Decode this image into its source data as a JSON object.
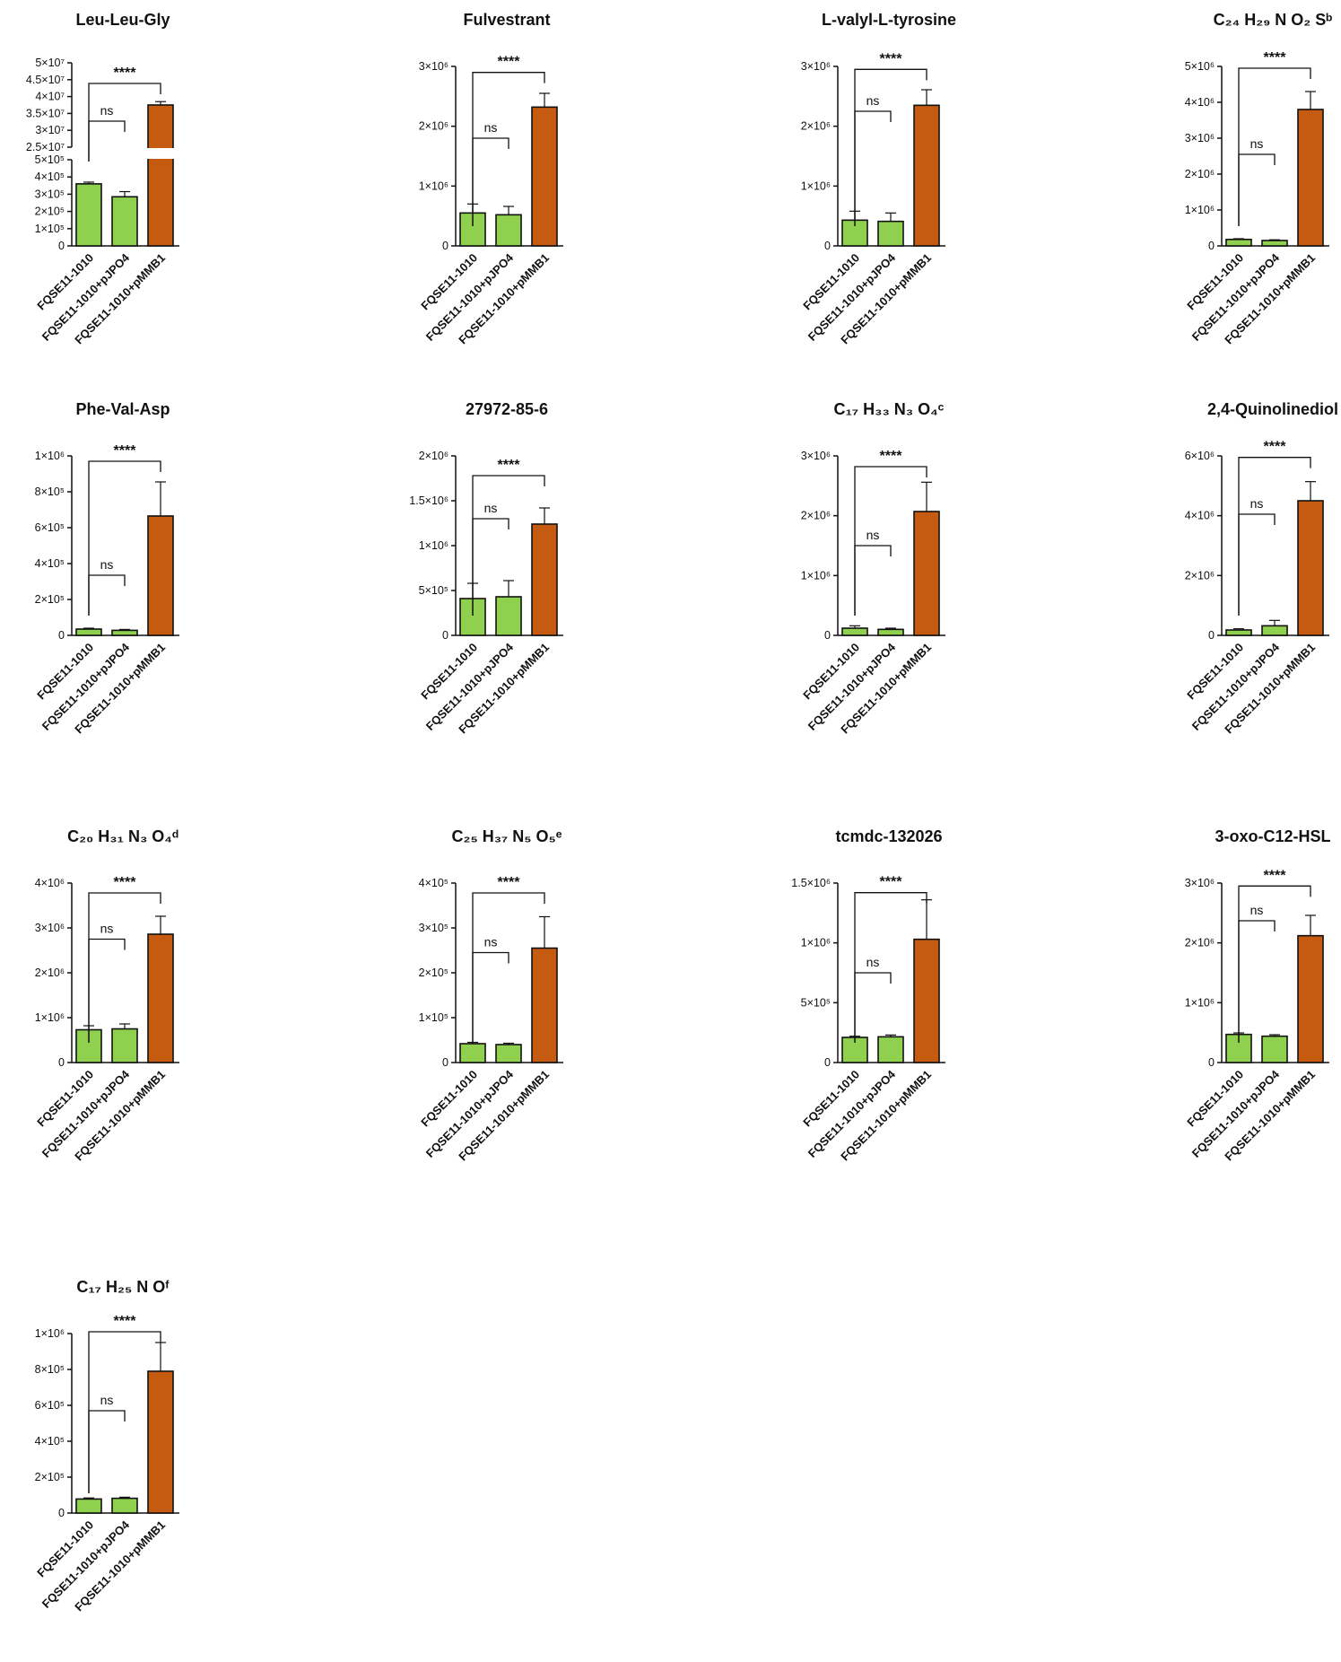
{
  "chart_data": [
    {
      "type": "bar",
      "title": "Leu-Leu-Gly",
      "categories": [
        "FQSE11-1010",
        "FQSE11-1010+pJPO4",
        "FQSE11-1010+pMMB1"
      ],
      "values": [
        360000,
        285000,
        37500000
      ],
      "errors": [
        10000,
        30000,
        1000000
      ],
      "colors": [
        "#8fd14f",
        "#8fd14f",
        "#c55a11"
      ],
      "axis_break": true,
      "lower_ylim": [
        0,
        500000
      ],
      "upper_ylim": [
        25000000,
        50000000
      ],
      "lower_ticks": [
        "0",
        "1×10⁵",
        "2×10⁵",
        "3×10⁵",
        "4×10⁵",
        "5×10⁵"
      ],
      "upper_ticks": [
        "2.5×10⁷",
        "3×10⁷",
        "3.5×10⁷",
        "4×10⁷",
        "4.5×10⁷",
        "5×10⁷"
      ],
      "significance": [
        {
          "groups": [
            0,
            1
          ],
          "label": "ns"
        },
        {
          "groups": [
            0,
            2
          ],
          "label": "****"
        }
      ]
    },
    {
      "type": "bar",
      "title": "Fulvestrant",
      "categories": [
        "FQSE11-1010",
        "FQSE11-1010+pJPO4",
        "FQSE11-1010+pMMB1"
      ],
      "values": [
        550000,
        520000,
        2320000
      ],
      "errors": [
        150000,
        140000,
        230000
      ],
      "colors": [
        "#8fd14f",
        "#8fd14f",
        "#c55a11"
      ],
      "ylim": [
        0,
        3000000
      ],
      "tick_values": [
        0,
        1000000,
        2000000,
        3000000
      ],
      "tick_labels": [
        "0",
        "1×10⁶",
        "2×10⁶",
        "3×10⁶"
      ],
      "significance": [
        {
          "groups": [
            0,
            1
          ],
          "label": "ns",
          "y": 1800000
        },
        {
          "groups": [
            0,
            2
          ],
          "label": "****",
          "y": 2900000
        }
      ]
    },
    {
      "type": "bar",
      "title": "L-valyl-L-tyrosine",
      "categories": [
        "FQSE11-1010",
        "FQSE11-1010+pJPO4",
        "FQSE11-1010+pMMB1"
      ],
      "values": [
        430000,
        410000,
        2350000
      ],
      "errors": [
        150000,
        140000,
        260000
      ],
      "colors": [
        "#8fd14f",
        "#8fd14f",
        "#c55a11"
      ],
      "ylim": [
        0,
        3000000
      ],
      "tick_values": [
        0,
        1000000,
        2000000,
        3000000
      ],
      "tick_labels": [
        "0",
        "1×10⁶",
        "2×10⁶",
        "3×10⁶"
      ],
      "significance": [
        {
          "groups": [
            0,
            1
          ],
          "label": "ns",
          "y": 2250000
        },
        {
          "groups": [
            0,
            2
          ],
          "label": "****",
          "y": 2950000
        }
      ]
    },
    {
      "type": "bar",
      "title": "C₂₄ H₂₉ N O₂ Sᵇ",
      "categories": [
        "FQSE11-1010",
        "FQSE11-1010+pJPO4",
        "FQSE11-1010+pMMB1"
      ],
      "values": [
        180000,
        150000,
        3800000
      ],
      "errors": [
        20000,
        20000,
        500000
      ],
      "colors": [
        "#8fd14f",
        "#8fd14f",
        "#c55a11"
      ],
      "ylim": [
        0,
        5000000
      ],
      "tick_values": [
        0,
        1000000,
        2000000,
        3000000,
        4000000,
        5000000
      ],
      "tick_labels": [
        "0",
        "1×10⁶",
        "2×10⁶",
        "3×10⁶",
        "4×10⁶",
        "5×10⁶"
      ],
      "significance": [
        {
          "groups": [
            0,
            1
          ],
          "label": "ns",
          "y": 2550000
        },
        {
          "groups": [
            0,
            2
          ],
          "label": "****",
          "y": 4950000
        }
      ]
    },
    {
      "type": "bar",
      "title": "Phe-Val-Asp",
      "categories": [
        "FQSE11-1010",
        "FQSE11-1010+pJPO4",
        "FQSE11-1010+pMMB1"
      ],
      "values": [
        35000,
        28000,
        665000
      ],
      "errors": [
        5000,
        5000,
        190000
      ],
      "colors": [
        "#8fd14f",
        "#8fd14f",
        "#c55a11"
      ],
      "ylim": [
        0,
        1000000
      ],
      "tick_values": [
        0,
        200000,
        400000,
        600000,
        800000,
        1000000
      ],
      "tick_labels": [
        "0",
        "2×10⁵",
        "4×10⁵",
        "6×10⁵",
        "8×10⁵",
        "1×10⁶"
      ],
      "significance": [
        {
          "groups": [
            0,
            1
          ],
          "label": "ns",
          "y": 335000
        },
        {
          "groups": [
            0,
            2
          ],
          "label": "****",
          "y": 970000
        }
      ]
    },
    {
      "type": "bar",
      "title": "27972-85-6",
      "categories": [
        "FQSE11-1010",
        "FQSE11-1010+pJPO4",
        "FQSE11-1010+pMMB1"
      ],
      "values": [
        410000,
        430000,
        1240000
      ],
      "errors": [
        170000,
        180000,
        180000
      ],
      "colors": [
        "#8fd14f",
        "#8fd14f",
        "#c55a11"
      ],
      "ylim": [
        0,
        2000000
      ],
      "tick_values": [
        0,
        500000,
        1000000,
        1500000,
        2000000
      ],
      "tick_labels": [
        "0",
        "5×10⁵",
        "1×10⁶",
        "1.5×10⁶",
        "2×10⁶"
      ],
      "significance": [
        {
          "groups": [
            0,
            1
          ],
          "label": "ns",
          "y": 1300000
        },
        {
          "groups": [
            0,
            2
          ],
          "label": "****",
          "y": 1780000
        }
      ]
    },
    {
      "type": "bar",
      "title": "C₁₇ H₃₃ N₃ O₄ᶜ",
      "categories": [
        "FQSE11-1010",
        "FQSE11-1010+pJPO4",
        "FQSE11-1010+pMMB1"
      ],
      "values": [
        120000,
        100000,
        2070000
      ],
      "errors": [
        40000,
        20000,
        490000
      ],
      "colors": [
        "#8fd14f",
        "#8fd14f",
        "#c55a11"
      ],
      "ylim": [
        0,
        3000000
      ],
      "tick_values": [
        0,
        1000000,
        2000000,
        3000000
      ],
      "tick_labels": [
        "0",
        "1×10⁶",
        "2×10⁶",
        "3×10⁶"
      ],
      "significance": [
        {
          "groups": [
            0,
            1
          ],
          "label": "ns",
          "y": 1500000
        },
        {
          "groups": [
            0,
            2
          ],
          "label": "****",
          "y": 2820000
        }
      ]
    },
    {
      "type": "bar",
      "title": "2,4-Quinolinediol",
      "categories": [
        "FQSE11-1010",
        "FQSE11-1010+pJPO4",
        "FQSE11-1010+pMMB1"
      ],
      "values": [
        180000,
        320000,
        4500000
      ],
      "errors": [
        40000,
        180000,
        640000
      ],
      "colors": [
        "#8fd14f",
        "#8fd14f",
        "#c55a11"
      ],
      "ylim": [
        0,
        6000000
      ],
      "tick_values": [
        0,
        2000000,
        4000000,
        6000000
      ],
      "tick_labels": [
        "0",
        "2×10⁶",
        "4×10⁶",
        "6×10⁶"
      ],
      "significance": [
        {
          "groups": [
            0,
            1
          ],
          "label": "ns",
          "y": 4050000
        },
        {
          "groups": [
            0,
            2
          ],
          "label": "****",
          "y": 5950000
        }
      ]
    },
    {
      "type": "bar",
      "title": "C₂₀ H₃₁ N₃ O₄ᵈ",
      "categories": [
        "FQSE11-1010",
        "FQSE11-1010+pJPO4",
        "FQSE11-1010+pMMB1"
      ],
      "values": [
        730000,
        750000,
        2860000
      ],
      "errors": [
        90000,
        110000,
        400000
      ],
      "colors": [
        "#8fd14f",
        "#8fd14f",
        "#c55a11"
      ],
      "ylim": [
        0,
        4000000
      ],
      "tick_values": [
        0,
        1000000,
        2000000,
        3000000,
        4000000
      ],
      "tick_labels": [
        "0",
        "1×10⁶",
        "2×10⁶",
        "3×10⁶",
        "4×10⁶"
      ],
      "significance": [
        {
          "groups": [
            0,
            1
          ],
          "label": "ns",
          "y": 2750000
        },
        {
          "groups": [
            0,
            2
          ],
          "label": "****",
          "y": 3780000
        }
      ]
    },
    {
      "type": "bar",
      "title": "C₂₅ H₃₇ N₅ O₅ᵉ",
      "categories": [
        "FQSE11-1010",
        "FQSE11-1010+pJPO4",
        "FQSE11-1010+pMMB1"
      ],
      "values": [
        42000,
        40000,
        255000
      ],
      "errors": [
        3000,
        3000,
        70000
      ],
      "colors": [
        "#8fd14f",
        "#8fd14f",
        "#c55a11"
      ],
      "ylim": [
        0,
        400000
      ],
      "tick_values": [
        0,
        100000,
        200000,
        300000,
        400000
      ],
      "tick_labels": [
        "0",
        "1×10⁵",
        "2×10⁵",
        "3×10⁵",
        "4×10⁵"
      ],
      "significance": [
        {
          "groups": [
            0,
            1
          ],
          "label": "ns",
          "y": 245000
        },
        {
          "groups": [
            0,
            2
          ],
          "label": "****",
          "y": 378000
        }
      ]
    },
    {
      "type": "bar",
      "title": "tcmdc-132026",
      "categories": [
        "FQSE11-1010",
        "FQSE11-1010+pJPO4",
        "FQSE11-1010+pMMB1"
      ],
      "values": [
        210000,
        215000,
        1030000
      ],
      "errors": [
        10000,
        15000,
        330000
      ],
      "colors": [
        "#8fd14f",
        "#8fd14f",
        "#c55a11"
      ],
      "ylim": [
        0,
        1500000
      ],
      "tick_values": [
        0,
        500000,
        1000000,
        1500000
      ],
      "tick_labels": [
        "0",
        "5×10⁵",
        "1×10⁶",
        "1.5×10⁶"
      ],
      "significance": [
        {
          "groups": [
            0,
            1
          ],
          "label": "ns",
          "y": 750000
        },
        {
          "groups": [
            0,
            2
          ],
          "label": "****",
          "y": 1420000
        }
      ]
    },
    {
      "type": "bar",
      "title": "3-oxo-C12-HSL",
      "categories": [
        "FQSE11-1010",
        "FQSE11-1010+pJPO4",
        "FQSE11-1010+pMMB1"
      ],
      "values": [
        470000,
        440000,
        2120000
      ],
      "errors": [
        25000,
        25000,
        340000
      ],
      "colors": [
        "#8fd14f",
        "#8fd14f",
        "#c55a11"
      ],
      "ylim": [
        0,
        3000000
      ],
      "tick_values": [
        0,
        1000000,
        2000000,
        3000000
      ],
      "tick_labels": [
        "0",
        "1×10⁶",
        "2×10⁶",
        "3×10⁶"
      ],
      "significance": [
        {
          "groups": [
            0,
            1
          ],
          "label": "ns",
          "y": 2370000
        },
        {
          "groups": [
            0,
            2
          ],
          "label": "****",
          "y": 2950000
        }
      ]
    },
    {
      "type": "bar",
      "title": "C₁₇ H₂₅ N Oᶠ",
      "categories": [
        "FQSE11-1010",
        "FQSE11-1010+pJPO4",
        "FQSE11-1010+pMMB1"
      ],
      "values": [
        78000,
        82000,
        790000
      ],
      "errors": [
        6000,
        6000,
        160000
      ],
      "colors": [
        "#8fd14f",
        "#8fd14f",
        "#c55a11"
      ],
      "ylim": [
        0,
        1000000
      ],
      "tick_values": [
        0,
        200000,
        400000,
        600000,
        800000,
        1000000
      ],
      "tick_labels": [
        "0",
        "2×10⁵",
        "4×10⁵",
        "6×10⁵",
        "8×10⁵",
        "1×10⁶"
      ],
      "significance": [
        {
          "groups": [
            0,
            1
          ],
          "label": "ns",
          "y": 570000
        },
        {
          "groups": [
            0,
            2
          ],
          "label": "****",
          "y": 1010000
        }
      ]
    }
  ]
}
